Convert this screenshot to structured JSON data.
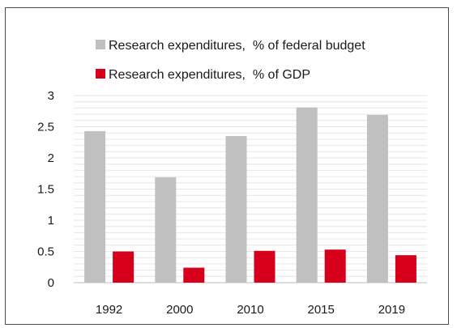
{
  "chart_data": {
    "type": "bar",
    "categories": [
      "1992",
      "2000",
      "2010",
      "2015",
      "2019"
    ],
    "series": [
      {
        "name": "Research expenditures,  % of federal budget",
        "values": [
          2.43,
          1.69,
          2.35,
          2.81,
          2.69
        ],
        "color": "#c0c0c0"
      },
      {
        "name": "Research expenditures,  % of GDP",
        "values": [
          0.5,
          0.24,
          0.51,
          0.53,
          0.44
        ],
        "color": "#d6001c"
      }
    ],
    "ylim": [
      0,
      3
    ],
    "yticks": [
      "0",
      "0.5",
      "1",
      "1.5",
      "2",
      "2.5",
      "3"
    ],
    "ytick_values": [
      0,
      0.5,
      1,
      1.5,
      2,
      2.5,
      3
    ],
    "minor_grid_step": 0.1,
    "grid": true,
    "legend": "top"
  }
}
